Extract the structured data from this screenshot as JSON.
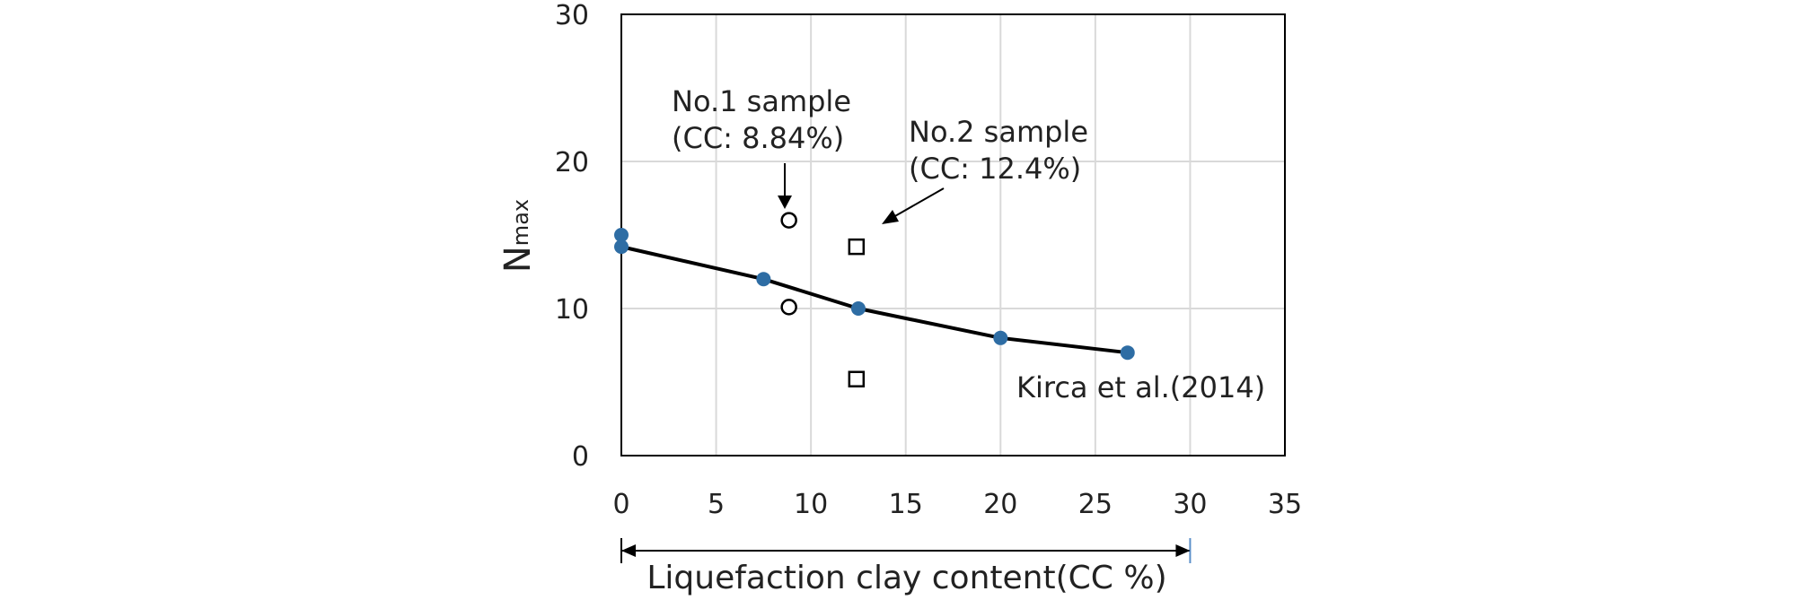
{
  "chart_data": {
    "type": "scatter",
    "xlabel": "Liquefaction clay content(CC %)",
    "ylabel": {
      "main": "N",
      "subscript": "max"
    },
    "xlim": [
      0,
      35
    ],
    "ylim": [
      0,
      30
    ],
    "x_ticks": [
      "0",
      "5",
      "10",
      "15",
      "20",
      "25",
      "30",
      "35"
    ],
    "y_ticks": [
      "0",
      "10",
      "20",
      "30"
    ],
    "grid": true,
    "series": [
      {
        "name": "Kirca et al.(2014)",
        "marker": "filled-circle",
        "color": "#2e6da4",
        "line": true,
        "x": [
          0,
          0,
          7.5,
          12.5,
          20,
          26.7
        ],
        "y": [
          15,
          14.2,
          12,
          10,
          8,
          7
        ]
      },
      {
        "name": "No.1 sample",
        "marker": "open-circle",
        "x": [
          8.84,
          8.84
        ],
        "y": [
          16,
          10.1
        ]
      },
      {
        "name": "No.2 sample",
        "marker": "open-square",
        "x": [
          12.4,
          12.4
        ],
        "y": [
          14.2,
          5.2
        ]
      }
    ],
    "fit_line": {
      "x": [
        0,
        7.5,
        12.5,
        20,
        26.7
      ],
      "y": [
        14.2,
        12,
        10,
        8,
        7
      ]
    },
    "annotations": [
      {
        "id": "no1",
        "lines": [
          "No.1 sample",
          "(CC: 8.84%)"
        ]
      },
      {
        "id": "no2",
        "lines": [
          "No.2 sample",
          "(CC: 12.4%)"
        ]
      },
      {
        "id": "kirca",
        "lines": [
          "Kirca et al.(2014)"
        ]
      }
    ],
    "range_arrow": {
      "x_from": 0,
      "x_to": 30
    }
  }
}
